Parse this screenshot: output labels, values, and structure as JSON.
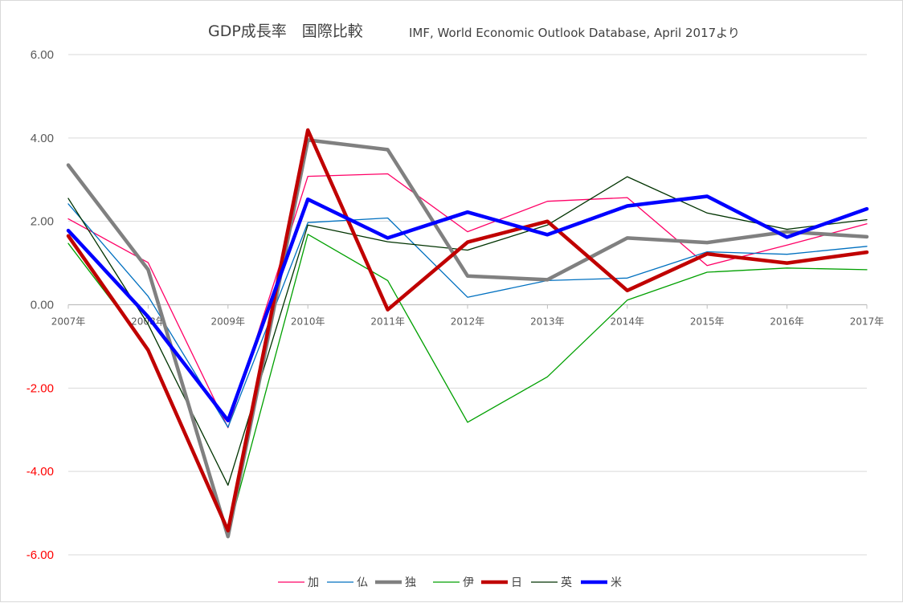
{
  "chart_data": {
    "type": "line",
    "title": "GDP成長率　国際比較",
    "subtitle": "IMF, World Economic Outlook Database, April 2017より",
    "categories": [
      "2007年",
      "2008年",
      "2009年",
      "2010年",
      "2011年",
      "2012年",
      "2013年",
      "2014年",
      "2015年",
      "2016年",
      "2017年"
    ],
    "ylim": [
      -6,
      6
    ],
    "y_ticks": [
      "6.00",
      "4.00",
      "2.00",
      "0.00",
      "-2.00",
      "-4.00",
      "-6.00"
    ],
    "negative_tick_color": "#ff0000",
    "positive_tick_color": "#595959",
    "grid": true,
    "legend_position": "bottom",
    "series": [
      {
        "name": "加",
        "color": "#ff0066",
        "width": 1.3,
        "values": [
          2.06,
          1.01,
          -2.95,
          3.08,
          3.14,
          1.75,
          2.48,
          2.57,
          0.94,
          1.43,
          1.94
        ]
      },
      {
        "name": "仏",
        "color": "#0070c0",
        "width": 1.3,
        "values": [
          2.42,
          0.2,
          -2.94,
          1.97,
          2.08,
          0.18,
          0.58,
          0.64,
          1.27,
          1.21,
          1.4
        ]
      },
      {
        "name": "独",
        "color": "#808080",
        "width": 4.5,
        "values": [
          3.35,
          0.84,
          -5.56,
          3.95,
          3.72,
          0.69,
          0.6,
          1.6,
          1.49,
          1.75,
          1.63
        ]
      },
      {
        "name": "伊",
        "color": "#00a000",
        "width": 1.3,
        "values": [
          1.47,
          -1.05,
          -5.48,
          1.69,
          0.58,
          -2.82,
          -1.73,
          0.11,
          0.78,
          0.88,
          0.84
        ]
      },
      {
        "name": "日",
        "color": "#c00000",
        "width": 4.5,
        "values": [
          1.65,
          -1.09,
          -5.42,
          4.19,
          -0.12,
          1.5,
          2.0,
          0.34,
          1.22,
          1.0,
          1.26
        ]
      },
      {
        "name": "英",
        "color": "#003300",
        "width": 1.3,
        "values": [
          2.55,
          -0.47,
          -4.33,
          1.91,
          1.51,
          1.31,
          1.91,
          3.07,
          2.2,
          1.81,
          2.04
        ]
      },
      {
        "name": "米",
        "color": "#0000ff",
        "width": 4.5,
        "values": [
          1.78,
          -0.29,
          -2.78,
          2.53,
          1.6,
          2.22,
          1.68,
          2.37,
          2.6,
          1.62,
          2.3
        ]
      }
    ]
  }
}
